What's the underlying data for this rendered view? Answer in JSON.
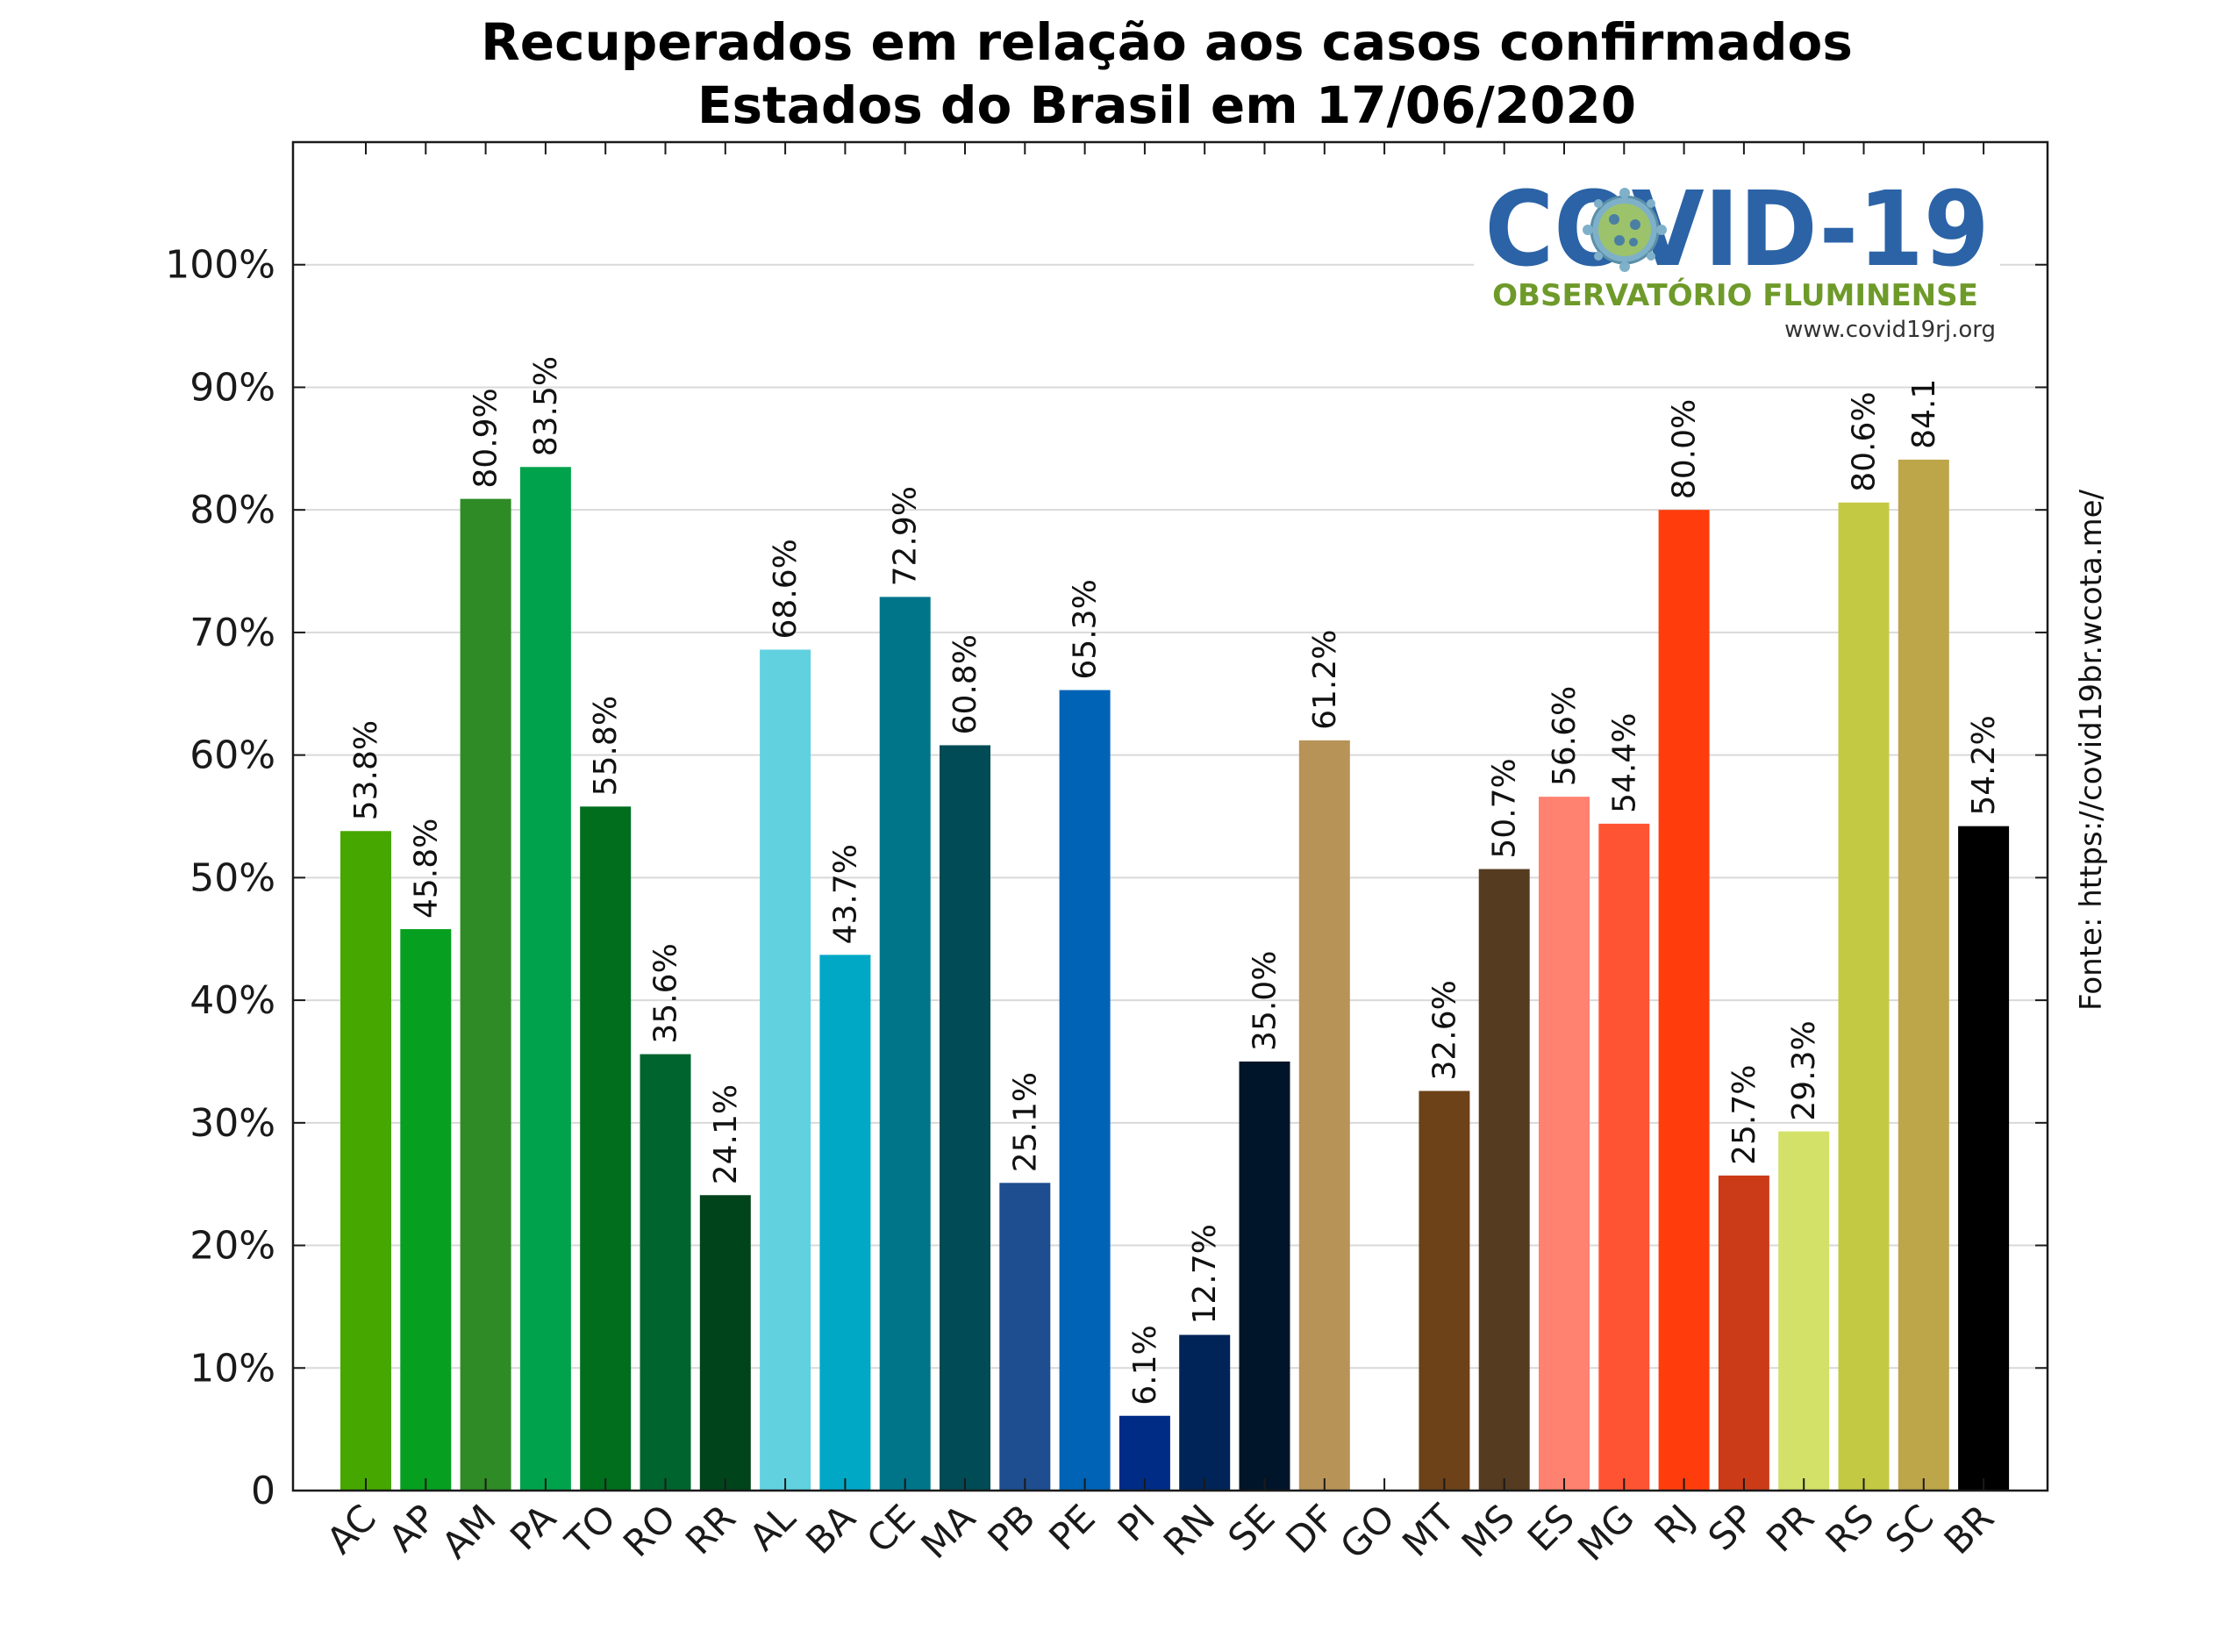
{
  "chart_data": {
    "type": "bar",
    "title": "Recuperados em relação aos casos confirmados",
    "subtitle": "Estados do Brasil em 17/06/2020",
    "source": "Fonte: https://covid19br.wcota.me/",
    "logo": {
      "title": "COVID-19",
      "subtitle": "OBSERVATÓRIO FLUMINENSE",
      "url": "www.covid19rj.org"
    },
    "ylim": [
      0,
      110
    ],
    "y_ticks": [
      0,
      10,
      20,
      30,
      40,
      50,
      60,
      70,
      80,
      90,
      100
    ],
    "y_tick_labels": [
      "0",
      "10%",
      "20%",
      "30%",
      "40%",
      "50%",
      "60%",
      "70%",
      "80%",
      "90%",
      "100%"
    ],
    "grid": true,
    "categories": [
      "AC",
      "AP",
      "AM",
      "PA",
      "TO",
      "RO",
      "RR",
      "AL",
      "BA",
      "CE",
      "MA",
      "PB",
      "PE",
      "PI",
      "RN",
      "SE",
      "DF",
      "GO",
      "MT",
      "MS",
      "ES",
      "MG",
      "RJ",
      "SP",
      "PR",
      "RS",
      "SC",
      "BR"
    ],
    "values": [
      53.8,
      45.8,
      80.9,
      83.5,
      55.8,
      35.6,
      24.1,
      68.6,
      43.7,
      72.9,
      60.8,
      25.1,
      65.3,
      6.1,
      12.7,
      35.0,
      61.2,
      null,
      32.6,
      50.7,
      56.6,
      54.4,
      80.0,
      25.7,
      29.3,
      80.6,
      84.1,
      54.2
    ],
    "value_labels": [
      "53.8%",
      "45.8%",
      "80.9%",
      "83.5%",
      "55.8%",
      "35.6%",
      "24.1%",
      "68.6%",
      "43.7%",
      "72.9%",
      "60.8%",
      "25.1%",
      "65.3%",
      "6.1%",
      "12.7%",
      "35.0%",
      "61.2%",
      "",
      "32.6%",
      "50.7%",
      "56.6%",
      "54.4%",
      "80.0%",
      "25.7%",
      "29.3%",
      "80.6%",
      "84.1",
      "54.2%"
    ],
    "colors": [
      "#46a700",
      "#079f1f",
      "#2f8b25",
      "#00a34b",
      "#006e1c",
      "#00642e",
      "#00441b",
      "#61d1e0",
      "#00a8c6",
      "#00758a",
      "#004b55",
      "#1e4e8f",
      "#0063b6",
      "#002c86",
      "#002457",
      "#001529",
      "#b89357",
      "#ffffff",
      "#6d4218",
      "#553b1f",
      "#ff8170",
      "#ff5433",
      "#ff3d0c",
      "#cc3b17",
      "#d3e168",
      "#c4c943",
      "#bda54a",
      "#000000"
    ]
  }
}
